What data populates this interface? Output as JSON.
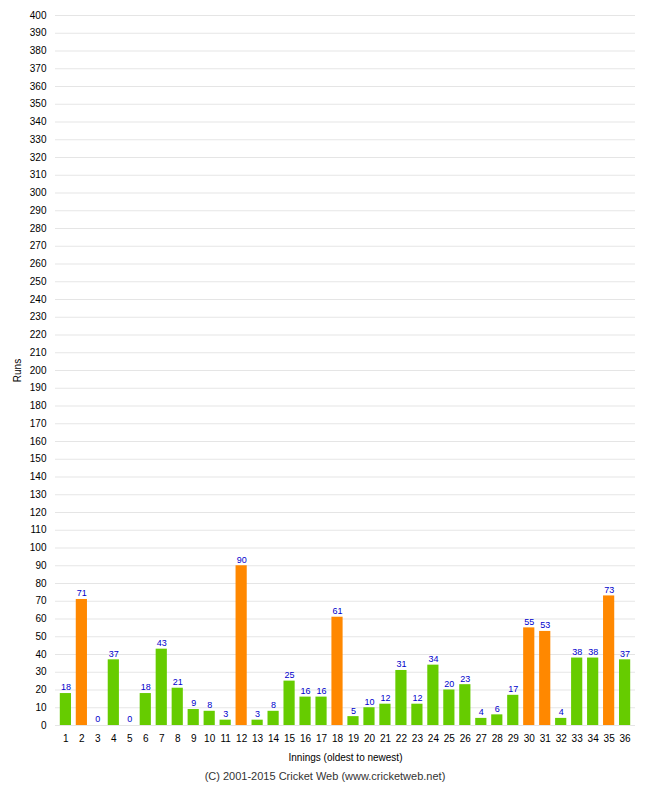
{
  "chart_data": {
    "type": "bar",
    "xlabel": "Innings (oldest to newest)",
    "ylabel": "Runs",
    "annotations": [
      "(C) 2001-2015 Cricket Web (www.cricketweb.net)"
    ],
    "categories": [
      "1",
      "2",
      "3",
      "4",
      "5",
      "6",
      "7",
      "8",
      "9",
      "10",
      "11",
      "12",
      "13",
      "14",
      "15",
      "16",
      "17",
      "18",
      "19",
      "20",
      "21",
      "22",
      "23",
      "24",
      "25",
      "26",
      "27",
      "28",
      "29",
      "30",
      "31",
      "32",
      "33",
      "34",
      "35",
      "36"
    ],
    "values": [
      18,
      71,
      0,
      37,
      0,
      18,
      43,
      21,
      9,
      8,
      3,
      90,
      3,
      8,
      25,
      16,
      16,
      61,
      5,
      10,
      12,
      31,
      12,
      34,
      20,
      23,
      4,
      6,
      17,
      55,
      53,
      4,
      38,
      38,
      73,
      37
    ],
    "colors": [
      "#66cc00",
      "#ff8800",
      "#66cc00",
      "#66cc00",
      "#66cc00",
      "#66cc00",
      "#66cc00",
      "#66cc00",
      "#66cc00",
      "#66cc00",
      "#66cc00",
      "#ff8800",
      "#66cc00",
      "#66cc00",
      "#66cc00",
      "#66cc00",
      "#66cc00",
      "#ff8800",
      "#66cc00",
      "#66cc00",
      "#66cc00",
      "#66cc00",
      "#66cc00",
      "#66cc00",
      "#66cc00",
      "#66cc00",
      "#66cc00",
      "#66cc00",
      "#66cc00",
      "#ff8800",
      "#ff8800",
      "#66cc00",
      "#66cc00",
      "#66cc00",
      "#ff8800",
      "#66cc00"
    ],
    "ylim": [
      0,
      400
    ],
    "yticks": [
      0,
      10,
      20,
      30,
      40,
      50,
      60,
      70,
      80,
      90,
      100,
      110,
      120,
      130,
      140,
      150,
      160,
      170,
      180,
      190,
      200,
      210,
      220,
      230,
      240,
      250,
      260,
      270,
      280,
      290,
      300,
      310,
      320,
      330,
      340,
      350,
      360,
      370,
      380,
      390,
      400
    ],
    "grid": true,
    "data_labels": true
  }
}
